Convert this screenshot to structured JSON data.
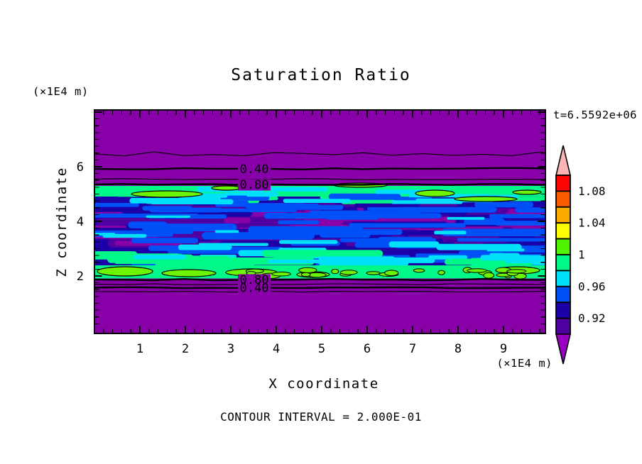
{
  "title": "Saturation Ratio",
  "timestamp": "t=6.5592e+06",
  "axes": {
    "x_label": "X coordinate",
    "x_unit": "(×1E4 m)",
    "y_label": "Z coordinate",
    "y_unit": "(×1E4 m)",
    "x_ticks": [
      "1",
      "2",
      "3",
      "4",
      "5",
      "6",
      "7",
      "8",
      "9"
    ],
    "y_ticks": [
      "6",
      "4",
      "2"
    ]
  },
  "contour_note": "CONTOUR INTERVAL = 2.000E-01",
  "colorbar": {
    "labels": [
      "1.08",
      "1.04",
      "1",
      "0.96",
      "0.92"
    ],
    "box_colors_top_to_bottom": [
      "#fc0404",
      "#fc5c00",
      "#fcac00",
      "#fcfc04",
      "#50f400",
      "#00f888",
      "#00e0f8",
      "#0050f8",
      "#1c00a8",
      "#5000a0"
    ],
    "above_range_color": "#fcb4b4",
    "below_range_color": "#9a00c4"
  },
  "contour_labels": {
    "top": [
      "0.40",
      "0.80"
    ],
    "bottom": [
      "0.80",
      "0.40"
    ]
  },
  "chart_data": {
    "type": "heatmap",
    "subtype": "filled-contour",
    "title": "Saturation Ratio",
    "xlabel": "X coordinate",
    "ylabel": "Z coordinate",
    "x_unit": "×1E4 m",
    "y_unit": "×1E4 m",
    "x_range": [
      0,
      9.9
    ],
    "z_range": [
      0,
      8.1
    ],
    "x_major_ticks": [
      1,
      2,
      3,
      4,
      5,
      6,
      7,
      8,
      9
    ],
    "z_major_ticks": [
      2,
      4,
      6
    ],
    "time_label": "t=6.5592e+06",
    "contour_interval": 0.2,
    "grid": false,
    "legend_position": "right-colorbar",
    "colorbar_boundary_values": [
      0.9,
      0.92,
      0.94,
      0.96,
      0.98,
      1.0,
      1.02,
      1.04,
      1.06,
      1.08,
      1.1
    ],
    "colorbar_labeled_values": [
      1.08,
      1.04,
      1,
      0.96,
      0.92
    ],
    "labeled_contours": [
      {
        "value": 0.4,
        "z": 5.92,
        "x": 3.5
      },
      {
        "value": 0.8,
        "z": 5.35,
        "x": 3.5
      },
      {
        "value": 0.8,
        "z": 1.87,
        "x": 3.5
      },
      {
        "value": 0.4,
        "z": 1.57,
        "x": 3.5
      }
    ],
    "unlabeled_contours": [
      {
        "value": 0.2,
        "z": 6.47
      },
      {
        "value": 0.6,
        "z": 5.55
      },
      {
        "value": 0.6,
        "z": 1.7
      },
      {
        "value": 0.2,
        "z": 1.43
      }
    ],
    "field_regions": [
      {
        "region": "z > 5.45",
        "saturation": "below 0.90, decreasing upward toward 0",
        "fill": "uniform purple"
      },
      {
        "region": "1.9 < z < 5.45",
        "saturation": "turbulent stratified moist layer, 0.90 to 1.02; green/cyan maxima (0.98-1.02) along z≈5.2 and z≈2.1, blue/violet minima (0.90-0.96) in the interior with supersaturated chartreuse patches (>1.0) outlined in black at layer top and bottom",
        "fill": "mixed navy/blue/cyan/green/purple streaks"
      },
      {
        "region": "z < 1.9",
        "saturation": "below 0.90, decreasing downward",
        "fill": "uniform purple"
      }
    ],
    "palette": {
      "background": "#8800a8",
      "dark_violet": "#5000a0",
      "navy": "#1c00a8",
      "blue": "#0050f8",
      "cyan": "#00e0f8",
      "spring_green": "#00f888",
      "chartreuse": "#6cf400"
    }
  }
}
